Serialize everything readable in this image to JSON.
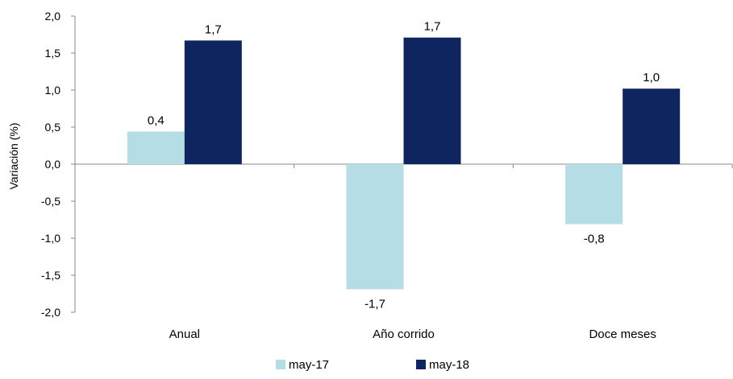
{
  "chart_data": {
    "type": "bar",
    "title": "",
    "xlabel": "",
    "ylabel": "Variación (%)",
    "ylim": [
      -2.0,
      2.0
    ],
    "yticks": [
      2.0,
      1.5,
      1.0,
      0.5,
      0.0,
      -0.5,
      -1.0,
      -1.5,
      -2.0
    ],
    "ytick_labels": [
      "2,0",
      "1,5",
      "1,0",
      "0,5",
      "0,0",
      "-0,5",
      "-1,0",
      "-1,5",
      "-2,0"
    ],
    "categories": [
      "Anual",
      "Año corrido",
      "Doce meses"
    ],
    "series": [
      {
        "name": "may-17",
        "color": "#b4dde6",
        "values": [
          0.44,
          -1.69,
          -0.81
        ],
        "labels": [
          "0,4",
          "-1,7",
          "-0,8"
        ]
      },
      {
        "name": "may-18",
        "color": "#0e2560",
        "values": [
          1.67,
          1.71,
          1.02
        ],
        "labels": [
          "1,7",
          "1,7",
          "1,0"
        ]
      }
    ],
    "grid": false,
    "legend_position": "bottom-center"
  }
}
